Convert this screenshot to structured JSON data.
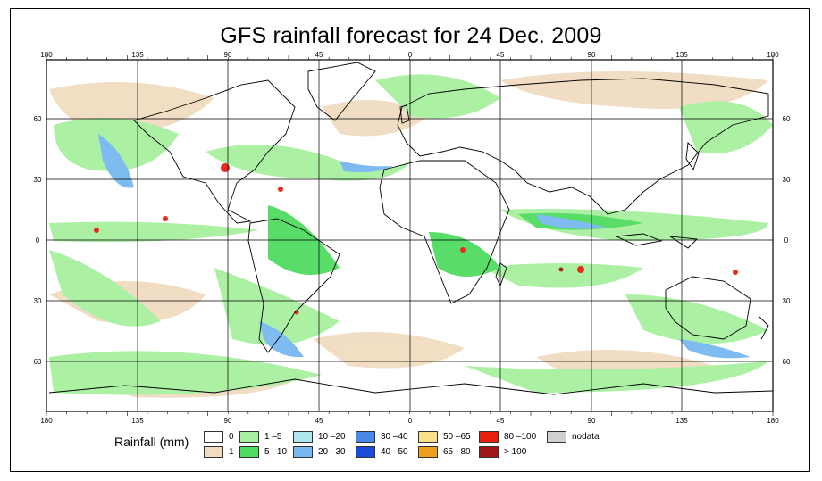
{
  "title": "GFS rainfall forecast for 24 Dec. 2009",
  "top_axis": [
    "180",
    "135",
    "90",
    "45",
    "0",
    "45",
    "90",
    "135",
    "180"
  ],
  "bottom_axis": [
    "180",
    "135",
    "90",
    "45",
    "0",
    "45",
    "90",
    "135",
    "180"
  ],
  "left_axis": [
    "60",
    "30",
    "0",
    "30",
    "60"
  ],
  "right_axis": [
    "60",
    "30",
    "0",
    "30",
    "60"
  ],
  "legend": {
    "title": "Rainfall (mm)",
    "items": [
      {
        "label": "0",
        "color": "#ffffff"
      },
      {
        "label": "1",
        "color": "#f0dcc0"
      },
      {
        "label": "1 –5",
        "color": "#a8f0a0"
      },
      {
        "label": "5 –10",
        "color": "#50dc60"
      },
      {
        "label": "10 –20",
        "color": "#b0e8f0"
      },
      {
        "label": "20 –30",
        "color": "#78b8f0"
      },
      {
        "label": "30 –40",
        "color": "#4a88e8"
      },
      {
        "label": "40 –50",
        "color": "#1a4ad8"
      },
      {
        "label": "50 –65",
        "color": "#f8e088"
      },
      {
        "label": "65 –80",
        "color": "#f0a020"
      },
      {
        "label": "80 –100",
        "color": "#e82010"
      },
      {
        "label": "> 100",
        "color": "#a01818"
      },
      {
        "label": "nodata",
        "color": "#d0d0d0"
      }
    ]
  },
  "colors": {
    "ocean": "#ffffff",
    "land_outline": "#000000",
    "grid": "#000000"
  }
}
